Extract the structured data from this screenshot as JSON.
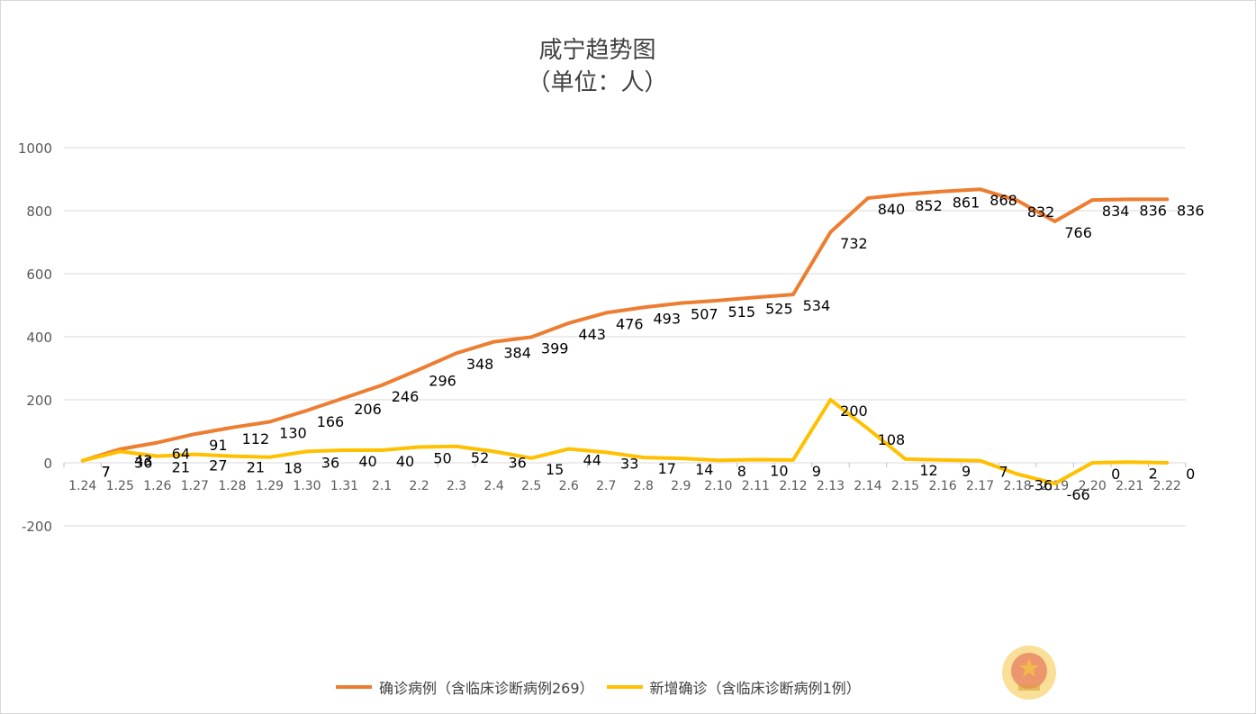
{
  "chart_data": {
    "type": "line",
    "title": "咸宁趋势图",
    "subtitle": "（单位：人）",
    "xlabel": "",
    "ylabel": "",
    "ylim": [
      -200,
      1000
    ],
    "y_ticks": [
      1000,
      800,
      600,
      400,
      200,
      0,
      -200
    ],
    "grid": true,
    "legend_position": "bottom",
    "categories": [
      "1.24",
      "1.25",
      "1.26",
      "1.27",
      "1.28",
      "1.29",
      "1.30",
      "1.31",
      "2.1",
      "2.2",
      "2.3",
      "2.4",
      "2.5",
      "2.6",
      "2.7",
      "2.8",
      "2.9",
      "2.10",
      "2.11",
      "2.12",
      "2.13",
      "2.14",
      "2.15",
      "2.16",
      "2.17",
      "2.18",
      "2.19",
      "2.20",
      "2.21",
      "2.22"
    ],
    "series": [
      {
        "name": "确诊病例（含临床诊断病例269）",
        "color": "#ed7d31",
        "values": [
          7,
          43,
          64,
          91,
          112,
          130,
          166,
          206,
          246,
          296,
          348,
          384,
          399,
          443,
          476,
          493,
          507,
          515,
          525,
          534,
          732,
          840,
          852,
          861,
          868,
          832,
          766,
          834,
          836,
          836
        ],
        "labels": [
          "7",
          "43",
          "64",
          "91",
          "112",
          "130",
          "166",
          "206",
          "246",
          "296",
          "348",
          "384",
          "399",
          "443",
          "476",
          "493",
          "507",
          "515",
          "525",
          "534",
          "732",
          "840",
          "852",
          "861",
          "868",
          "832",
          "766",
          "834",
          "836",
          "836"
        ]
      },
      {
        "name": "新增确诊（含临床诊断病例1例）",
        "color": "#ffc000",
        "values": [
          7,
          36,
          21,
          27,
          21,
          18,
          36,
          40,
          40,
          50,
          52,
          36,
          15,
          44,
          33,
          17,
          14,
          8,
          10,
          9,
          200,
          108,
          12,
          9,
          7,
          -36,
          -66,
          0,
          2,
          0
        ],
        "labels": [
          "7",
          "36",
          "21",
          "27",
          "21",
          "18",
          "36",
          "40",
          "40",
          "50",
          "52",
          "36",
          "15",
          "44",
          "33",
          "17",
          "14",
          "8",
          "10",
          "9",
          "200",
          "108",
          "12",
          "9",
          "7",
          "-36",
          "-66",
          "0",
          "2",
          "0"
        ]
      }
    ]
  },
  "emblem_icon": "national-emblem-icon"
}
